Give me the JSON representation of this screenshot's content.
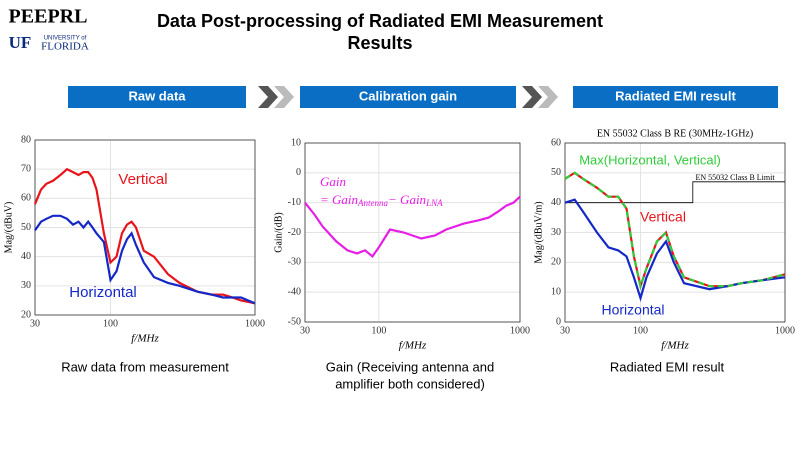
{
  "header": {
    "logo_top": "PEEPRL",
    "logo_uf": "UF",
    "logo_university": "UNIVERSITY of",
    "logo_florida": "FLORIDA",
    "title_lines": [
      "Data Post-processing of Radiated EMI Measurement",
      "Results"
    ]
  },
  "steps": [
    "Raw data",
    "Calibration gain",
    "Radiated EMI result"
  ],
  "captions": [
    [
      "Raw data from measurement"
    ],
    [
      "Gain (Receiving antenna and",
      "amplifier both considered)"
    ],
    [
      "Radiated EMI result"
    ]
  ],
  "chart_data": [
    {
      "type": "line",
      "xlabel": "f/MHz",
      "ylabel": "Mag/(dBuV)",
      "xscale": "log",
      "xlim": [
        30,
        1000
      ],
      "xticks": [
        30,
        100,
        1000
      ],
      "ylim": [
        20,
        80
      ],
      "yticks": [
        20,
        30,
        40,
        50,
        60,
        70,
        80
      ],
      "grid": true,
      "x": [
        30,
        33,
        36,
        40,
        45,
        50,
        55,
        60,
        65,
        70,
        75,
        80,
        90,
        100,
        110,
        120,
        130,
        140,
        150,
        170,
        200,
        250,
        300,
        400,
        500,
        600,
        700,
        800,
        1000
      ],
      "series": [
        {
          "name": "Vertical",
          "color": "#e8141b",
          "values": [
            58,
            63,
            65,
            66,
            68,
            70,
            69,
            68,
            69,
            69,
            67,
            63,
            48,
            38,
            40,
            48,
            51,
            52,
            50,
            42,
            40,
            34,
            31,
            28,
            27,
            27,
            26,
            25,
            24
          ]
        },
        {
          "name": "Horizontal",
          "color": "#1428c8",
          "values": [
            49,
            52,
            53,
            54,
            54,
            53,
            51,
            52,
            50,
            52,
            50,
            48,
            45,
            32,
            35,
            42,
            46,
            48,
            44,
            38,
            33,
            31,
            30,
            28,
            27,
            26,
            26,
            26,
            24
          ]
        }
      ]
    },
    {
      "type": "line",
      "xlabel": "f/MHz",
      "ylabel": "Gain/(dB)",
      "xscale": "log",
      "xlim": [
        30,
        1000
      ],
      "xticks": [
        30,
        100,
        1000
      ],
      "ylim": [
        -50,
        10
      ],
      "yticks": [
        -50,
        -40,
        -30,
        -20,
        -10,
        0,
        10
      ],
      "grid": true,
      "annotation": [
        "Gain",
        "= Gain",
        "Antenna",
        "− Gain",
        "LNA"
      ],
      "x": [
        30,
        35,
        40,
        50,
        60,
        70,
        80,
        90,
        100,
        120,
        150,
        200,
        250,
        300,
        400,
        500,
        600,
        700,
        800,
        900,
        1000
      ],
      "series": [
        {
          "color": "#e61ee6",
          "values": [
            -10,
            -14,
            -18,
            -23,
            -26,
            -27,
            -26,
            -28,
            -25,
            -19,
            -20,
            -22,
            -21,
            -19,
            -17,
            -16,
            -15,
            -13,
            -11,
            -10,
            -8
          ]
        }
      ]
    },
    {
      "type": "line",
      "title": "EN 55032 Class B RE (30MHz-1GHz)",
      "xlabel": "f/MHz",
      "ylabel": "Mag/(dBuV/m)",
      "xscale": "log",
      "xlim": [
        30,
        1000
      ],
      "xticks": [
        30,
        100,
        1000
      ],
      "ylim": [
        0,
        60
      ],
      "yticks": [
        0,
        10,
        20,
        30,
        40,
        50,
        60
      ],
      "grid": true,
      "x": [
        30,
        35,
        40,
        50,
        60,
        70,
        80,
        90,
        100,
        110,
        130,
        150,
        170,
        200,
        300,
        400,
        500,
        700,
        1000
      ],
      "series": [
        {
          "name": "EN 55032 Class B Limit",
          "color": "#000000",
          "x": [
            30,
            230,
            230,
            1000
          ],
          "values": [
            40,
            40,
            47,
            47
          ]
        },
        {
          "name": "Vertical",
          "color": "#e8141b",
          "values": [
            48,
            50,
            48,
            45,
            42,
            42,
            38,
            22,
            12,
            18,
            27,
            30,
            22,
            15,
            12,
            12,
            13,
            14,
            16
          ]
        },
        {
          "name": "Horizontal",
          "color": "#1428c8",
          "values": [
            40,
            41,
            37,
            30,
            25,
            24,
            22,
            15,
            8,
            15,
            23,
            27,
            20,
            13,
            11,
            12,
            13,
            14,
            15
          ]
        },
        {
          "name": "Max(Horizontal, Vertical)",
          "color": "#2fcc3a",
          "dash": true,
          "values": [
            48,
            50,
            48,
            45,
            42,
            42,
            38,
            22,
            12,
            18,
            27,
            30,
            22,
            15,
            12,
            12,
            13,
            14,
            16
          ]
        }
      ]
    }
  ]
}
